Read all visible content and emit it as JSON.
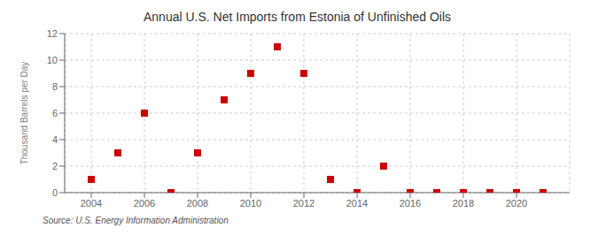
{
  "chart_data": {
    "type": "scatter",
    "title": "Annual U.S. Net Imports from Estonia of Unfinished Oils",
    "ylabel": "Thousand Barrels per Day",
    "annotations": [
      "Source: U.S. Energy Information Administration"
    ],
    "x": [
      2004,
      2005,
      2006,
      2007,
      2008,
      2009,
      2010,
      2011,
      2012,
      2013,
      2014,
      2015,
      2016,
      2017,
      2018,
      2019,
      2020,
      2021
    ],
    "values": [
      1,
      3,
      6,
      0,
      3,
      7,
      9,
      11,
      9,
      1,
      0,
      2,
      0,
      0,
      0,
      0,
      0,
      0
    ],
    "color": "#cc0000",
    "marker": "square",
    "xlim": [
      2003.0,
      2022.0
    ],
    "ylim": [
      0,
      12
    ],
    "xticks": [
      2004,
      2006,
      2008,
      2010,
      2012,
      2014,
      2016,
      2018,
      2020
    ],
    "yticks": [
      0,
      2,
      4,
      6,
      8,
      10,
      12
    ],
    "grid": true
  }
}
